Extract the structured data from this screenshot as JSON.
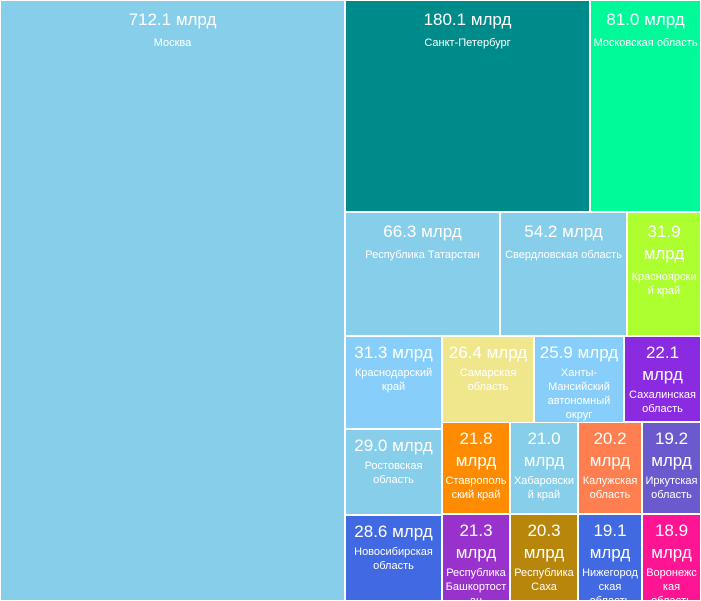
{
  "chart_data": {
    "type": "treemap",
    "unit": "млрд",
    "colors": {
      "Москва": "#87ceeb",
      "Санкт-Петербург": "#008b8b",
      "Московская область": "#00fa9a",
      "Республика Татарстан": "#87ceeb",
      "Свердловская область": "#87ceeb",
      "Красноярский край": "#adff2f",
      "Краснодарский край": "#87cefa",
      "Самарская область": "#f0e68c",
      "Ханты-Мансийский автономный округ": "#87cefa",
      "Сахалинская область": "#8a2be2",
      "Ростовская область": "#87ceeb",
      "Ставропольский край": "#ff8c00",
      "Хабаровский край": "#87ceeb",
      "Калужская область": "#ff7f50",
      "Иркутская область": "#6a5acd",
      "Новосибирская область": "#4169e1",
      "Республика Башкортостан": "#9932cc",
      "Республика Саха": "#b8860b",
      "Нижегородская область": "#4169e1",
      "Воронежская область": "#ff1493"
    },
    "items": [
      {
        "name": "Москва",
        "value": 712.1,
        "value_label": "712.1 млрд"
      },
      {
        "name": "Санкт-Петербург",
        "value": 180.1,
        "value_label": "180.1 млрд"
      },
      {
        "name": "Московская область",
        "value": 81.0,
        "value_label": "81.0 млрд"
      },
      {
        "name": "Республика Татарстан",
        "value": 66.3,
        "value_label": "66.3 млрд"
      },
      {
        "name": "Свердловская область",
        "value": 54.2,
        "value_label": "54.2 млрд"
      },
      {
        "name": "Красноярский край",
        "value": 31.9,
        "value_label": "31.9 млрд"
      },
      {
        "name": "Краснодарский край",
        "value": 31.3,
        "value_label": "31.3 млрд"
      },
      {
        "name": "Самарская область",
        "value": 26.4,
        "value_label": "26.4 млрд"
      },
      {
        "name": "Ханты-Мансийский автономный округ",
        "value": 25.9,
        "value_label": "25.9 млрд"
      },
      {
        "name": "Сахалинская область",
        "value": 22.1,
        "value_label": "22.1 млрд"
      },
      {
        "name": "Ростовская область",
        "value": 29.0,
        "value_label": "29.0 млрд"
      },
      {
        "name": "Ставропольский край",
        "value": 21.8,
        "value_label": "21.8 млрд"
      },
      {
        "name": "Хабаровский край",
        "value": 21.0,
        "value_label": "21.0 млрд"
      },
      {
        "name": "Калужская область",
        "value": 20.2,
        "value_label": "20.2 млрд"
      },
      {
        "name": "Иркутская область",
        "value": 19.2,
        "value_label": "19.2 млрд"
      },
      {
        "name": "Новосибирская область",
        "value": 28.6,
        "value_label": "28.6 млрд"
      },
      {
        "name": "Республика Башкортостан",
        "value": 21.3,
        "value_label": "21.3 млрд"
      },
      {
        "name": "Республика Саха",
        "value": 20.3,
        "value_label": "20.3 млрд"
      },
      {
        "name": "Нижегородская область",
        "value": 19.1,
        "value_label": "19.1 млрд"
      },
      {
        "name": "Воронежская область",
        "value": 18.9,
        "value_label": "18.9 млрд"
      }
    ]
  }
}
